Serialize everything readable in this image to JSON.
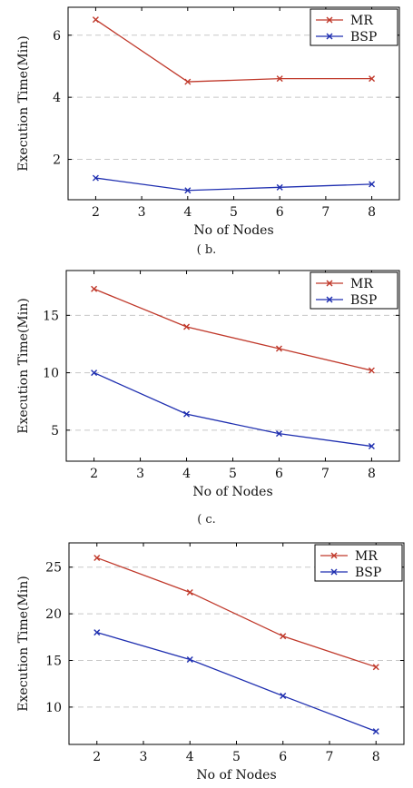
{
  "chart_data": [
    {
      "type": "line",
      "x": [
        2,
        4,
        6,
        8
      ],
      "xticks": [
        2,
        3,
        4,
        5,
        6,
        7,
        8
      ],
      "yticks": [
        2,
        4,
        6
      ],
      "xlim": [
        1.4,
        8.6
      ],
      "ylim": [
        0.7,
        6.9
      ],
      "xlabel": "No of Nodes",
      "ylabel": "Execution Time(Min)",
      "grid": "horizontal dashed",
      "legend": "top-right",
      "series": [
        {
          "name": "MR",
          "color": "#c0392b",
          "values": [
            6.5,
            4.5,
            4.6,
            4.6
          ]
        },
        {
          "name": "BSP",
          "color": "#1f2fb0",
          "values": [
            1.4,
            1.0,
            1.1,
            1.2
          ]
        }
      ]
    },
    {
      "type": "line",
      "x": [
        2,
        4,
        6,
        8
      ],
      "xticks": [
        2,
        3,
        4,
        5,
        6,
        7,
        8
      ],
      "yticks": [
        5,
        10,
        15
      ],
      "xlim": [
        1.4,
        8.6
      ],
      "ylim": [
        2.3,
        18.9
      ],
      "xlabel": "No of Nodes",
      "ylabel": "Execution Time(Min)",
      "grid": "horizontal dashed",
      "legend": "top-right",
      "series": [
        {
          "name": "MR",
          "color": "#c0392b",
          "values": [
            17.3,
            14.0,
            12.1,
            10.2
          ]
        },
        {
          "name": "BSP",
          "color": "#1f2fb0",
          "values": [
            10.0,
            6.4,
            4.7,
            3.6
          ]
        }
      ]
    },
    {
      "type": "line",
      "x": [
        2,
        4,
        6,
        8
      ],
      "xticks": [
        2,
        3,
        4,
        5,
        6,
        7,
        8
      ],
      "yticks": [
        10,
        15,
        20,
        25
      ],
      "xlim": [
        1.4,
        8.6
      ],
      "ylim": [
        6.0,
        27.6
      ],
      "xlabel": "No of Nodes",
      "ylabel": "Execution Time(Min)",
      "grid": "horizontal dashed",
      "legend": "top-right",
      "series": [
        {
          "name": "MR",
          "color": "#c0392b",
          "values": [
            26.0,
            22.3,
            17.6,
            14.3
          ]
        },
        {
          "name": "BSP",
          "color": "#1f2fb0",
          "values": [
            18.0,
            15.1,
            11.2,
            7.4
          ]
        }
      ]
    }
  ],
  "captions": [
    "( b.",
    "( c."
  ]
}
